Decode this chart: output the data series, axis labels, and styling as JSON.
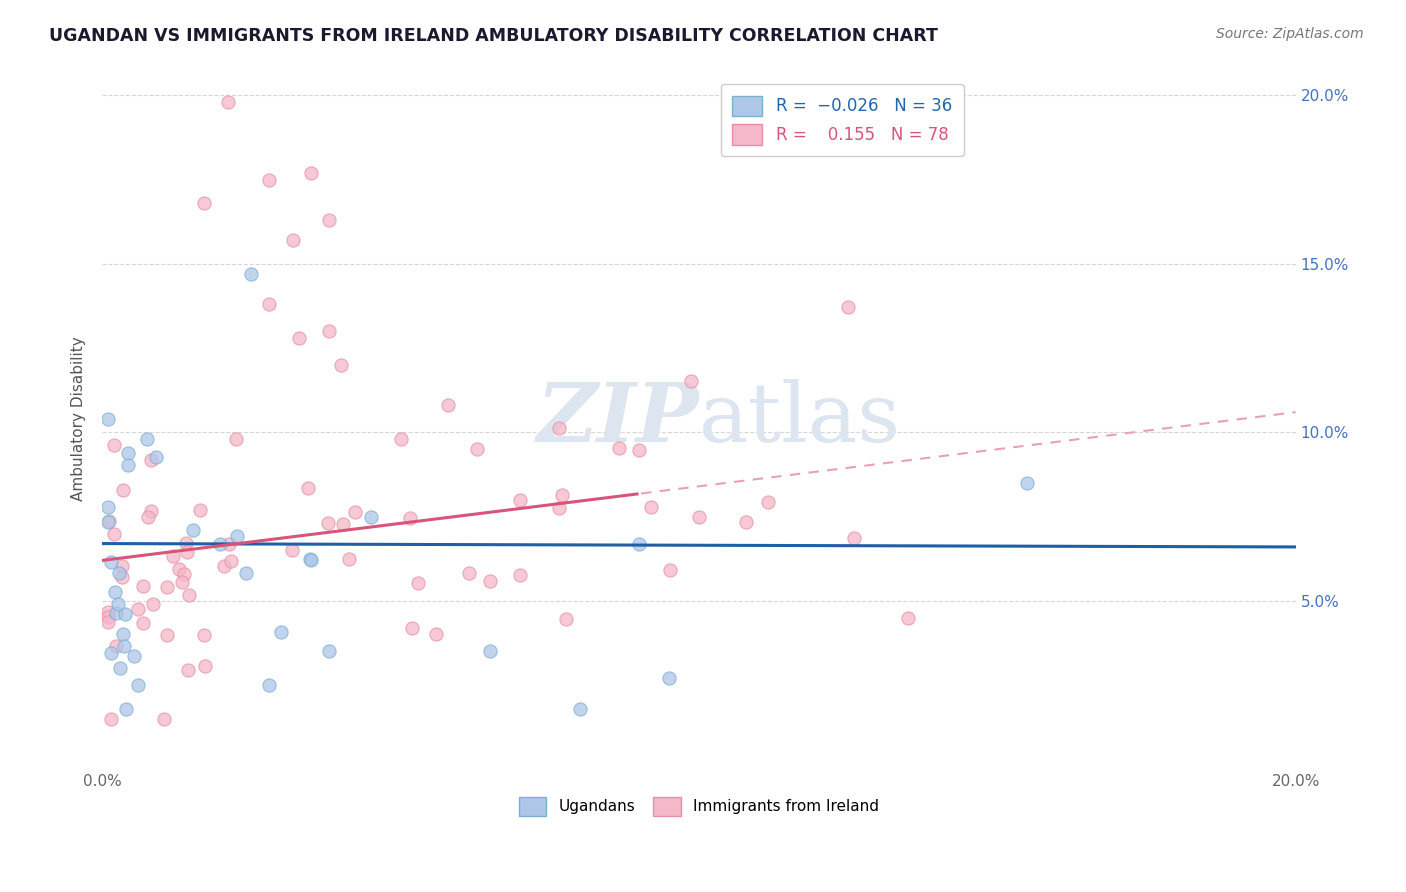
{
  "title": "UGANDAN VS IMMIGRANTS FROM IRELAND AMBULATORY DISABILITY CORRELATION CHART",
  "source": "Source: ZipAtlas.com",
  "ylabel": "Ambulatory Disability",
  "xmin": 0.0,
  "xmax": 0.2,
  "ymin": 0.0,
  "ymax": 0.208,
  "xticks": [
    0.0,
    0.2
  ],
  "xtick_labels": [
    "0.0%",
    "20.0%"
  ],
  "yticks": [
    0.05,
    0.1,
    0.15,
    0.2
  ],
  "ytick_right_labels": [
    "5.0%",
    "10.0%",
    "15.0%",
    "20.0%"
  ],
  "ugandan_color": "#aec6e8",
  "ireland_color": "#f4b8c8",
  "ugandan_edge_color": "#7bafd4",
  "ireland_edge_color": "#e88fa8",
  "ugandan_trend_color": "#1f5fa6",
  "ireland_trend_color_solid": "#d9547a",
  "ireland_trend_color_dash": "#e8a0b8",
  "watermark_color": "#dde5f0",
  "legend_labels_bottom": [
    "Ugandans",
    "Immigrants from Ireland"
  ],
  "legend_colors_bottom": [
    "#aec6e8",
    "#f4b8c8"
  ],
  "ireland_trend_solid_end": 0.09,
  "ugandan_trend_y0": 0.067,
  "ugandan_trend_slope": -0.005,
  "ireland_trend_y0": 0.062,
  "ireland_trend_slope": 0.22
}
